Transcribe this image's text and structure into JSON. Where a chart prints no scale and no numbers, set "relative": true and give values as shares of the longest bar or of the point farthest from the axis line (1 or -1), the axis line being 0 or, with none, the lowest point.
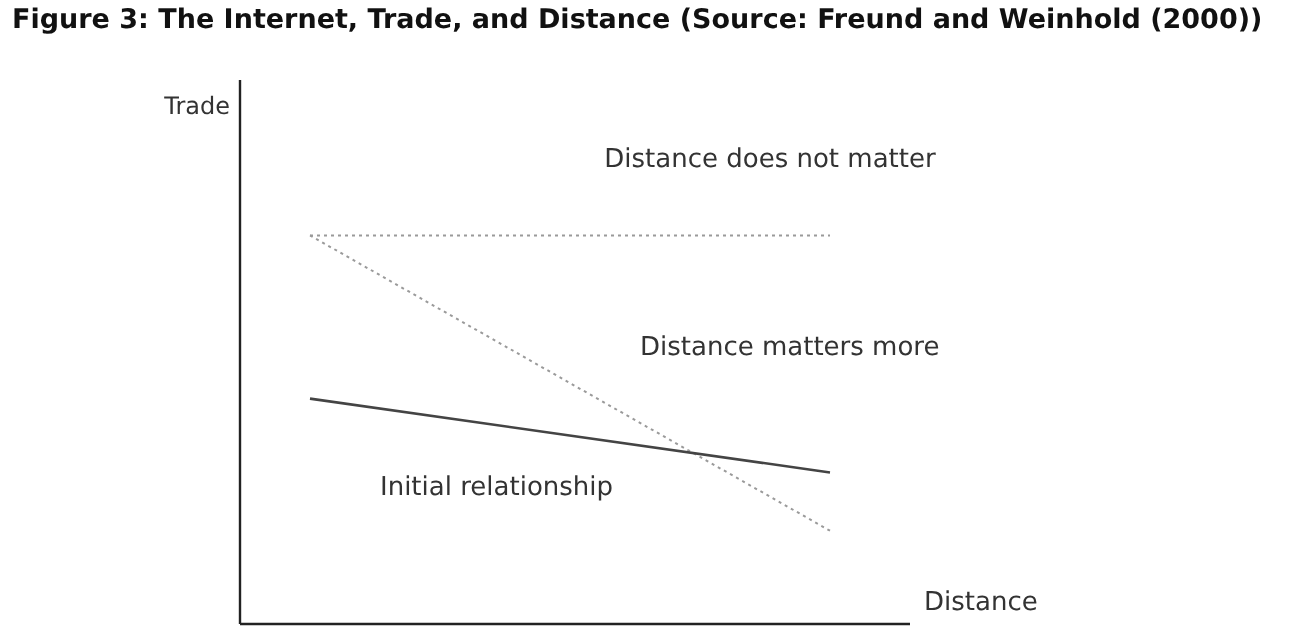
{
  "chart_data": {
    "type": "line",
    "title": "Figure 3: The Internet, Trade, and Distance (Source: Freund and Weinhold (2000))",
    "xlabel": "Distance",
    "ylabel": "Trade",
    "relative": true,
    "categories": [
      null,
      null
    ],
    "series": [
      {
        "name": "Distance does not matter",
        "color": "#9a9a9a",
        "line_style": "dotted",
        "values": [
          1,
          1
        ]
      },
      {
        "name": "Distance matters more",
        "color": "#9a9a9a",
        "line_style": "dotted",
        "values": [
          1,
          0.24
        ]
      },
      {
        "name": "Initial relationship",
        "color": "#444444",
        "line_style": "solid",
        "values": [
          0.58,
          0.39
        ]
      }
    ],
    "legend": false,
    "grid": false,
    "marker": "none"
  }
}
